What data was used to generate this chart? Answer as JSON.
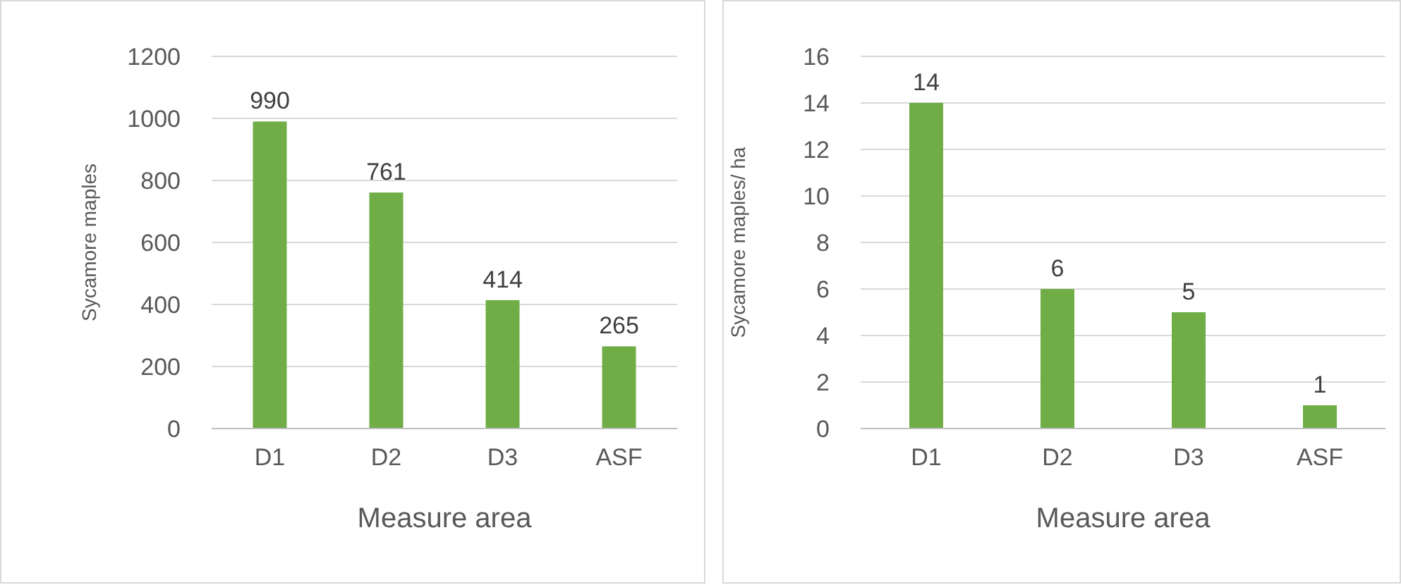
{
  "chart_data": [
    {
      "type": "bar",
      "xlabel": "Measure area",
      "ylabel": "Sycamore maples",
      "categories": [
        "D1",
        "D2",
        "D3",
        "ASF"
      ],
      "values": [
        990,
        761,
        414,
        265
      ],
      "color": "#70ad47",
      "ylim": [
        0,
        1200
      ],
      "yticks": [
        0,
        200,
        400,
        600,
        800,
        1000,
        1200
      ],
      "grid": "y",
      "data_labels": true
    },
    {
      "type": "bar",
      "xlabel": "Measure area",
      "ylabel": "Sycamore maples/ ha",
      "categories": [
        "D1",
        "D2",
        "D3",
        "ASF"
      ],
      "values": [
        14,
        6,
        5,
        1
      ],
      "color": "#70ad47",
      "ylim": [
        0,
        16
      ],
      "yticks": [
        0,
        2,
        4,
        6,
        8,
        10,
        12,
        14,
        16
      ],
      "grid": "y",
      "data_labels": true
    }
  ]
}
